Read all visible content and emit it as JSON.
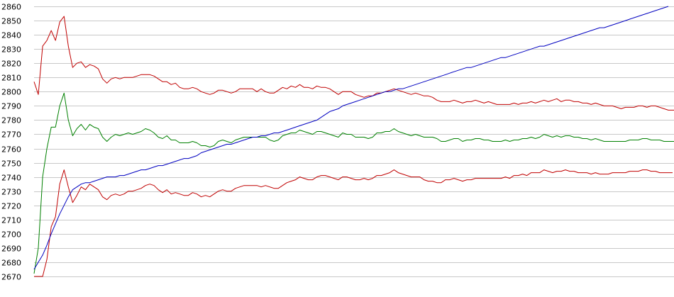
{
  "chart_data": {
    "type": "line",
    "title": "",
    "xlabel": "",
    "ylabel": "",
    "ylim": [
      2670,
      2860
    ],
    "xlim": [
      0,
      149
    ],
    "grid": {
      "horizontal": true,
      "vertical": false
    },
    "y_ticks": [
      2670,
      2680,
      2690,
      2700,
      2710,
      2720,
      2730,
      2740,
      2750,
      2760,
      2770,
      2780,
      2790,
      2800,
      2810,
      2820,
      2830,
      2840,
      2850,
      2860
    ],
    "y_tick_labels": [
      "2670",
      "2680",
      "2690",
      "2700",
      "2710",
      "2720",
      "2730",
      "2740",
      "2750",
      "2760",
      "2770",
      "2780",
      "2790",
      "2800",
      "2810",
      "2820",
      "2830",
      "2840",
      "2850",
      "2860"
    ],
    "colors": {
      "background": "#ffffff",
      "grid": "#c8c8c8",
      "upper": "#c00000",
      "middle": "#008000",
      "lower": "#c00000",
      "trend": "#0000c0"
    },
    "series": [
      {
        "color": "#c00000",
        "values": [
          2807,
          2798,
          2832,
          2836,
          2843,
          2836,
          2849,
          2853,
          2832,
          2817,
          2820,
          2821,
          2817,
          2819,
          2818,
          2816,
          2809,
          2806,
          2809,
          2810,
          2809,
          2810,
          2810,
          2810,
          2811,
          2812,
          2812,
          2812,
          2811,
          2809,
          2807,
          2807,
          2805,
          2806,
          2803,
          2802,
          2802,
          2803,
          2802,
          2800,
          2799,
          2798,
          2799,
          2801,
          2801,
          2800,
          2799,
          2800,
          2802,
          2802,
          2802,
          2802,
          2800,
          2802,
          2800,
          2799,
          2799,
          2801,
          2803,
          2802,
          2804,
          2803,
          2805,
          2803,
          2803,
          2802,
          2804,
          2803,
          2803,
          2802,
          2800,
          2798,
          2800,
          2800,
          2800,
          2798,
          2797,
          2796,
          2797,
          2797,
          2799,
          2799,
          2800,
          2801,
          2802,
          2801,
          2800,
          2799,
          2798,
          2799,
          2798,
          2797,
          2797,
          2796,
          2794,
          2793,
          2793,
          2793,
          2794,
          2793,
          2792,
          2793,
          2793,
          2794,
          2793,
          2792,
          2793,
          2792,
          2791,
          2791,
          2791,
          2791,
          2792,
          2791,
          2792,
          2792,
          2793,
          2792,
          2793,
          2794,
          2793,
          2794,
          2795,
          2793,
          2794,
          2794,
          2793,
          2793,
          2792,
          2792,
          2791,
          2792,
          2791,
          2790,
          2790,
          2790,
          2789,
          2788,
          2789,
          2789,
          2789,
          2790,
          2790,
          2789,
          2790,
          2790,
          2789,
          2788,
          2787,
          2787,
          2787,
          2788
        ]
      },
      {
        "color": "#008000",
        "values": [
          2672,
          2690,
          2740,
          2760,
          2775,
          2775,
          2790,
          2799,
          2780,
          2769,
          2774,
          2777,
          2773,
          2777,
          2775,
          2774,
          2768,
          2765,
          2768,
          2770,
          2769,
          2770,
          2771,
          2770,
          2771,
          2772,
          2774,
          2773,
          2771,
          2768,
          2767,
          2769,
          2766,
          2766,
          2764,
          2764,
          2764,
          2765,
          2764,
          2762,
          2762,
          2761,
          2762,
          2765,
          2766,
          2765,
          2764,
          2766,
          2767,
          2768,
          2768,
          2768,
          2768,
          2768,
          2768,
          2766,
          2765,
          2766,
          2769,
          2770,
          2771,
          2771,
          2773,
          2772,
          2771,
          2770,
          2772,
          2772,
          2771,
          2770,
          2769,
          2768,
          2771,
          2770,
          2770,
          2768,
          2768,
          2768,
          2767,
          2768,
          2771,
          2771,
          2772,
          2772,
          2774,
          2772,
          2771,
          2770,
          2769,
          2770,
          2769,
          2768,
          2768,
          2768,
          2767,
          2765,
          2765,
          2766,
          2767,
          2767,
          2765,
          2766,
          2766,
          2767,
          2767,
          2766,
          2766,
          2765,
          2765,
          2765,
          2766,
          2765,
          2766,
          2766,
          2767,
          2767,
          2768,
          2767,
          2768,
          2770,
          2769,
          2768,
          2769,
          2768,
          2769,
          2769,
          2768,
          2768,
          2767,
          2767,
          2766,
          2767,
          2766,
          2765,
          2765,
          2765,
          2765,
          2765,
          2765,
          2766,
          2766,
          2766,
          2767,
          2767,
          2766,
          2766,
          2766,
          2765,
          2765,
          2765,
          2765,
          2765
        ]
      },
      {
        "color": "#c00000",
        "values": [
          2670,
          2670,
          2670,
          2682,
          2705,
          2712,
          2735,
          2745,
          2733,
          2722,
          2727,
          2733,
          2731,
          2735,
          2733,
          2731,
          2726,
          2724,
          2727,
          2728,
          2727,
          2728,
          2730,
          2730,
          2731,
          2732,
          2734,
          2735,
          2734,
          2731,
          2729,
          2731,
          2728,
          2729,
          2728,
          2727,
          2727,
          2729,
          2728,
          2726,
          2727,
          2726,
          2728,
          2730,
          2731,
          2730,
          2730,
          2732,
          2733,
          2734,
          2734,
          2734,
          2734,
          2733,
          2734,
          2733,
          2732,
          2732,
          2734,
          2736,
          2737,
          2738,
          2740,
          2739,
          2738,
          2738,
          2740,
          2741,
          2741,
          2740,
          2739,
          2738,
          2740,
          2740,
          2739,
          2738,
          2738,
          2739,
          2738,
          2739,
          2741,
          2741,
          2742,
          2743,
          2745,
          2743,
          2742,
          2741,
          2740,
          2740,
          2740,
          2738,
          2737,
          2737,
          2736,
          2736,
          2738,
          2738,
          2739,
          2738,
          2737,
          2738,
          2738,
          2739,
          2739,
          2739,
          2739,
          2739,
          2739,
          2739,
          2740,
          2739,
          2741,
          2741,
          2742,
          2741,
          2743,
          2743,
          2743,
          2745,
          2744,
          2743,
          2744,
          2744,
          2745,
          2744,
          2744,
          2743,
          2743,
          2743,
          2742,
          2743,
          2742,
          2742,
          2742,
          2743,
          2743,
          2743,
          2743,
          2744,
          2744,
          2744,
          2745,
          2745,
          2744,
          2744,
          2743,
          2743,
          2743,
          2743
        ]
      },
      {
        "color": "#0000c0",
        "values": [
          2675,
          2680,
          2685,
          2692,
          2700,
          2707,
          2714,
          2720,
          2726,
          2731,
          2733,
          2735,
          2736,
          2736,
          2737,
          2738,
          2739,
          2740,
          2740,
          2740,
          2741,
          2741,
          2742,
          2743,
          2744,
          2745,
          2745,
          2746,
          2747,
          2748,
          2748,
          2749,
          2750,
          2751,
          2752,
          2753,
          2753,
          2754,
          2755,
          2757,
          2758,
          2759,
          2760,
          2761,
          2762,
          2763,
          2763,
          2764,
          2765,
          2766,
          2767,
          2768,
          2768,
          2769,
          2769,
          2770,
          2771,
          2771,
          2772,
          2773,
          2774,
          2775,
          2776,
          2777,
          2778,
          2779,
          2780,
          2782,
          2784,
          2786,
          2787,
          2788,
          2790,
          2791,
          2792,
          2793,
          2794,
          2795,
          2796,
          2797,
          2798,
          2799,
          2800,
          2800,
          2801,
          2802,
          2802,
          2803,
          2804,
          2805,
          2806,
          2807,
          2808,
          2809,
          2810,
          2811,
          2812,
          2813,
          2814,
          2815,
          2816,
          2817,
          2817,
          2818,
          2819,
          2820,
          2821,
          2822,
          2823,
          2824,
          2824,
          2825,
          2826,
          2827,
          2828,
          2829,
          2830,
          2831,
          2832,
          2832,
          2833,
          2834,
          2835,
          2836,
          2837,
          2838,
          2839,
          2840,
          2841,
          2842,
          2843,
          2844,
          2845,
          2845,
          2846,
          2847,
          2848,
          2849,
          2850,
          2851,
          2852,
          2853,
          2854,
          2855,
          2856,
          2857,
          2858,
          2859,
          2860
        ]
      }
    ]
  }
}
